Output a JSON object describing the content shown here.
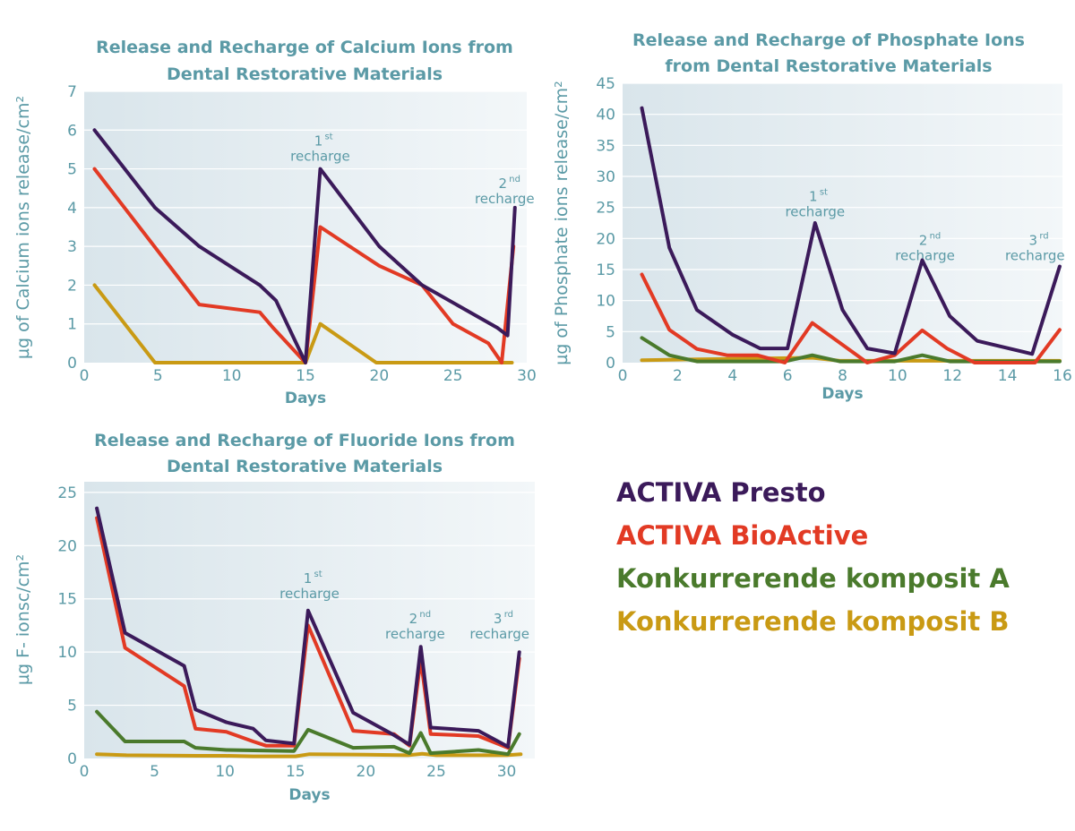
{
  "colors": {
    "teal": "#5b9aa6",
    "plot_bg_left": "#d9e5eb",
    "plot_bg_right": "#f3f7f9",
    "series": [
      "#3b1a5a",
      "#e23a24",
      "#4a7a2c",
      "#c99a14"
    ]
  },
  "legend": {
    "items": [
      {
        "label": "ACTIVA Presto",
        "color": "#3b1a5a"
      },
      {
        "label": "ACTIVA BioActive",
        "color": "#e23a24"
      },
      {
        "label": "Konkurrerende komposit A",
        "color": "#4a7a2c"
      },
      {
        "label": "Konkurrerende komposit B",
        "color": "#c99a14"
      }
    ]
  },
  "chart_data": [
    {
      "type": "line",
      "title": [
        "Release and Recharge of Calcium Ions from",
        "Dental Restorative Materials"
      ],
      "xlabel": "Days",
      "ylabel": "µg of Calcium ions release/cm²",
      "xlim": [
        0,
        30
      ],
      "ylim": [
        0,
        7
      ],
      "xticks": [
        0,
        5,
        10,
        15,
        20,
        25,
        30
      ],
      "yticks": [
        0,
        1,
        2,
        3,
        4,
        5,
        6,
        7
      ],
      "grid": "horizontal",
      "annotations": [
        {
          "sup": "st",
          "line1": "1",
          "line2": "recharge",
          "x": 16,
          "y": 5.6
        },
        {
          "sup": "nd",
          "line1": "2",
          "line2": "recharge",
          "x": 28.5,
          "y": 4.5
        }
      ],
      "series": [
        {
          "name": "ACTIVA Presto",
          "points": [
            [
              0.7,
              6
            ],
            [
              4.8,
              4
            ],
            [
              7.8,
              3
            ],
            [
              11.9,
              2
            ],
            [
              13,
              1.6
            ],
            [
              15,
              0
            ],
            [
              16,
              5
            ],
            [
              20,
              3
            ],
            [
              22.9,
              2
            ],
            [
              28,
              0.9
            ],
            [
              28.7,
              0.7
            ],
            [
              29.2,
              4
            ]
          ]
        },
        {
          "name": "ACTIVA BioActive",
          "points": [
            [
              0.7,
              5
            ],
            [
              7.8,
              1.5
            ],
            [
              11.9,
              1.3
            ],
            [
              12.8,
              0.9
            ],
            [
              15,
              0
            ],
            [
              16,
              3.5
            ],
            [
              20,
              2.5
            ],
            [
              22.9,
              2
            ],
            [
              25,
              1
            ],
            [
              27.4,
              0.5
            ],
            [
              28.3,
              0
            ],
            [
              29.1,
              3
            ]
          ]
        },
        {
          "name": "Konkurrerende komposit B",
          "points": [
            [
              0.7,
              2
            ],
            [
              4.8,
              0
            ],
            [
              15,
              0
            ],
            [
              16,
              1
            ],
            [
              19.8,
              0
            ],
            [
              29,
              0
            ]
          ]
        }
      ]
    },
    {
      "type": "line",
      "title": [
        "Release and Recharge of Phosphate Ions",
        "from Dental Restorative Materials"
      ],
      "xlabel": "Days",
      "ylabel": "µg of Phosphate ions release/cm²",
      "xlim": [
        0,
        16
      ],
      "ylim": [
        0,
        45
      ],
      "xticks": [
        0,
        2,
        4,
        6,
        8,
        10,
        12,
        14,
        16
      ],
      "yticks": [
        0,
        5,
        10,
        15,
        20,
        25,
        30,
        35,
        40,
        45
      ],
      "grid": "horizontal",
      "annotations": [
        {
          "sup": "st",
          "line1": "1",
          "line2": "recharge",
          "x": 7,
          "y": 26
        },
        {
          "sup": "nd",
          "line1": "2",
          "line2": "recharge",
          "x": 11,
          "y": 19
        },
        {
          "sup": "rd",
          "line1": "3",
          "line2": "recharge",
          "x": 15,
          "y": 19
        }
      ],
      "series": [
        {
          "name": "ACTIVA Presto",
          "points": [
            [
              0.7,
              41
            ],
            [
              1.7,
              18.5
            ],
            [
              2.7,
              8.5
            ],
            [
              4,
              4.5
            ],
            [
              5,
              2.3
            ],
            [
              6,
              2.3
            ],
            [
              7,
              22.5
            ],
            [
              8,
              8.5
            ],
            [
              8.9,
              2.3
            ],
            [
              9.9,
              1.5
            ],
            [
              10.9,
              16.5
            ],
            [
              11.9,
              7.5
            ],
            [
              12.9,
              3.5
            ],
            [
              14.9,
              1.4
            ],
            [
              15.9,
              15.5
            ]
          ]
        },
        {
          "name": "ACTIVA BioActive",
          "points": [
            [
              0.7,
              14.2
            ],
            [
              1.7,
              5.3
            ],
            [
              2.7,
              2.2
            ],
            [
              3.8,
              1.2
            ],
            [
              4.9,
              1.2
            ],
            [
              5.9,
              0
            ],
            [
              6.9,
              6.4
            ],
            [
              8.9,
              0
            ],
            [
              9.9,
              1.2
            ],
            [
              10.9,
              5.2
            ],
            [
              11.8,
              2.3
            ],
            [
              12.8,
              0
            ],
            [
              15,
              0
            ],
            [
              15.9,
              5.3
            ]
          ]
        },
        {
          "name": "Konkurrerende komposit A",
          "points": [
            [
              0.7,
              4
            ],
            [
              1.7,
              1.2
            ],
            [
              2.7,
              0.2
            ],
            [
              5.9,
              0.2
            ],
            [
              6.9,
              1.2
            ],
            [
              7.9,
              0.2
            ],
            [
              9.9,
              0.2
            ],
            [
              10.9,
              1.2
            ],
            [
              11.9,
              0.2
            ],
            [
              15.9,
              0.2
            ]
          ]
        },
        {
          "name": "Konkurrerende komposit B",
          "points": [
            [
              0.7,
              0.4
            ],
            [
              6.9,
              0.8
            ],
            [
              7.9,
              0.3
            ],
            [
              15.9,
              0.3
            ]
          ]
        }
      ]
    },
    {
      "type": "line",
      "title": [
        "Release and Recharge of Fluoride Ions from",
        "Dental Restorative Materials"
      ],
      "xlabel": "Days",
      "ylabel": "µg  F- ionsc/cm²",
      "xlim": [
        0,
        32
      ],
      "ylim": [
        0,
        26
      ],
      "xticks": [
        0,
        5,
        10,
        15,
        20,
        25,
        30
      ],
      "yticks": [
        0,
        5,
        10,
        15,
        20,
        25
      ],
      "grid": "horizontal",
      "annotations": [
        {
          "sup": "st",
          "line1": "1",
          "line2": "recharge",
          "x": 16,
          "y": 16.5
        },
        {
          "sup": "nd",
          "line1": "2",
          "line2": "recharge",
          "x": 23.5,
          "y": 12.7
        },
        {
          "sup": "rd",
          "line1": "3",
          "line2": "recharge",
          "x": 29.5,
          "y": 12.7
        }
      ],
      "series": [
        {
          "name": "ACTIVA Presto",
          "points": [
            [
              0.9,
              23.5
            ],
            [
              2.9,
              11.8
            ],
            [
              7.1,
              8.7
            ],
            [
              7.9,
              4.6
            ],
            [
              10.1,
              3.4
            ],
            [
              12,
              2.8
            ],
            [
              12.9,
              1.7
            ],
            [
              14.9,
              1.4
            ],
            [
              15.9,
              13.9
            ],
            [
              19.1,
              4.3
            ],
            [
              22,
              2.2
            ],
            [
              23.1,
              1.3
            ],
            [
              23.9,
              10.5
            ],
            [
              24.6,
              2.9
            ],
            [
              28,
              2.6
            ],
            [
              30.1,
              1.1
            ],
            [
              30.9,
              10
            ]
          ]
        },
        {
          "name": "ACTIVA BioActive",
          "points": [
            [
              0.9,
              22.6
            ],
            [
              2.9,
              10.4
            ],
            [
              7.1,
              6.8
            ],
            [
              7.9,
              2.8
            ],
            [
              10.1,
              2.5
            ],
            [
              12,
              1.6
            ],
            [
              12.9,
              1.2
            ],
            [
              14.9,
              1.2
            ],
            [
              15.9,
              12.5
            ],
            [
              19.1,
              2.6
            ],
            [
              22,
              2.3
            ],
            [
              23.1,
              1.2
            ],
            [
              23.9,
              9.3
            ],
            [
              24.6,
              2.3
            ],
            [
              28,
              2.1
            ],
            [
              30.1,
              1
            ],
            [
              30.9,
              9.4
            ]
          ]
        },
        {
          "name": "Konkurrerende komposit A",
          "points": [
            [
              0.9,
              4.4
            ],
            [
              2.9,
              1.6
            ],
            [
              7.1,
              1.6
            ],
            [
              7.9,
              1
            ],
            [
              10.1,
              0.8
            ],
            [
              14.9,
              0.7
            ],
            [
              15.9,
              2.7
            ],
            [
              19.1,
              1
            ],
            [
              22,
              1.1
            ],
            [
              23.1,
              0.5
            ],
            [
              23.9,
              2.4
            ],
            [
              24.6,
              0.5
            ],
            [
              28,
              0.8
            ],
            [
              30.1,
              0.4
            ],
            [
              30.9,
              2.3
            ]
          ]
        },
        {
          "name": "Konkurrerende komposit B",
          "points": [
            [
              0.9,
              0.4
            ],
            [
              3,
              0.3
            ],
            [
              8,
              0.25
            ],
            [
              10,
              0.25
            ],
            [
              12,
              0.2
            ],
            [
              15,
              0.2
            ],
            [
              16,
              0.4
            ],
            [
              20,
              0.35
            ],
            [
              23,
              0.3
            ],
            [
              24,
              0.45
            ],
            [
              25,
              0.3
            ],
            [
              30,
              0.3
            ],
            [
              31,
              0.4
            ]
          ]
        }
      ]
    }
  ]
}
